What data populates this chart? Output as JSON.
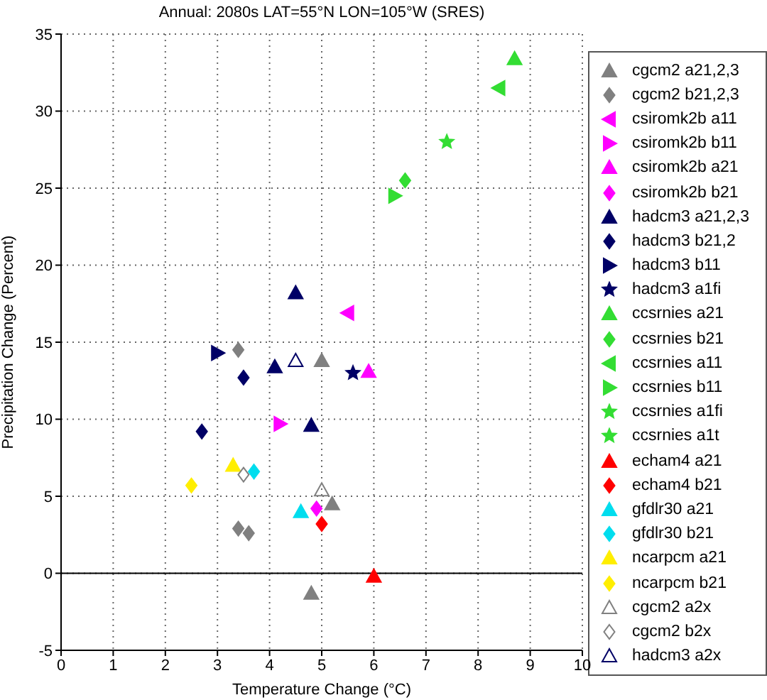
{
  "chart_data": {
    "type": "scatter",
    "title": "Annual: 2080s LAT=55°N LON=105°W (SRES)",
    "xlabel": "Temperature Change (°C)",
    "ylabel": "Precipitation Change (Percent)",
    "xlim": [
      0,
      10
    ],
    "xticks": [
      0,
      1,
      2,
      3,
      4,
      5,
      6,
      7,
      8,
      9,
      10
    ],
    "ylim": [
      -5,
      35
    ],
    "yticks": [
      -5,
      0,
      5,
      10,
      15,
      20,
      25,
      30,
      35
    ],
    "grid": true,
    "legend": "right",
    "ref_lines": [
      {
        "axis": "y",
        "value": 0,
        "color": "#000000",
        "line_style": "solid"
      }
    ],
    "series": [
      {
        "name": "cgcm2 a21,2,3",
        "color": "#808080",
        "marker": "triangle",
        "x": [
          5.0,
          5.2,
          4.8
        ],
        "values": [
          13.8,
          4.5,
          -1.3
        ]
      },
      {
        "name": "cgcm2 b21,2,3",
        "color": "#808080",
        "marker": "diamond",
        "x": [
          3.4,
          3.4,
          3.6
        ],
        "values": [
          14.5,
          2.9,
          2.6
        ]
      },
      {
        "name": "csiromk2b a11",
        "color": "#ff00ff",
        "marker": "triangle-left",
        "x": [
          5.5
        ],
        "values": [
          16.9
        ]
      },
      {
        "name": "csiromk2b b11",
        "color": "#ff00ff",
        "marker": "triangle-right",
        "x": [
          4.2
        ],
        "values": [
          9.7
        ]
      },
      {
        "name": "csiromk2b a21",
        "color": "#ff00ff",
        "marker": "triangle",
        "x": [
          5.9
        ],
        "values": [
          13.1
        ]
      },
      {
        "name": "csiromk2b b21",
        "color": "#ff00ff",
        "marker": "diamond",
        "x": [
          4.9
        ],
        "values": [
          4.2
        ]
      },
      {
        "name": "hadcm3 a21,2,3",
        "color": "#000066",
        "marker": "triangle",
        "x": [
          4.5,
          4.1,
          4.8
        ],
        "values": [
          18.2,
          13.4,
          9.6
        ]
      },
      {
        "name": "hadcm3 b21,2",
        "color": "#000066",
        "marker": "diamond",
        "x": [
          3.5,
          2.7
        ],
        "values": [
          12.7,
          9.2
        ]
      },
      {
        "name": "hadcm3 b11",
        "color": "#000066",
        "marker": "triangle-right",
        "x": [
          3.0
        ],
        "values": [
          14.3
        ]
      },
      {
        "name": "hadcm3 a1fi",
        "color": "#000066",
        "marker": "star",
        "x": [
          5.6
        ],
        "values": [
          13.0
        ]
      },
      {
        "name": "ccsrnies a21",
        "color": "#33dd33",
        "marker": "triangle",
        "x": [
          8.7
        ],
        "values": [
          33.4
        ]
      },
      {
        "name": "ccsrnies b21",
        "color": "#33dd33",
        "marker": "diamond",
        "x": [
          6.6
        ],
        "values": [
          25.5
        ]
      },
      {
        "name": "ccsrnies a11",
        "color": "#33dd33",
        "marker": "triangle-left",
        "x": [
          8.4
        ],
        "values": [
          31.5
        ]
      },
      {
        "name": "ccsrnies b11",
        "color": "#33dd33",
        "marker": "triangle-right",
        "x": [
          6.4
        ],
        "values": [
          24.5
        ]
      },
      {
        "name": "ccsrnies a1fi",
        "color": "#33dd33",
        "marker": "star",
        "x": [
          null
        ],
        "values": [
          null
        ]
      },
      {
        "name": "ccsrnies a1t",
        "color": "#33dd33",
        "marker": "star",
        "x": [
          7.4
        ],
        "values": [
          28.0
        ]
      },
      {
        "name": "echam4 a21",
        "color": "#ff0000",
        "marker": "triangle",
        "x": [
          6.0
        ],
        "values": [
          -0.2
        ]
      },
      {
        "name": "echam4 b21",
        "color": "#ff0000",
        "marker": "diamond",
        "x": [
          5.0
        ],
        "values": [
          3.2
        ]
      },
      {
        "name": "gfdlr30 a21",
        "color": "#00ddee",
        "marker": "triangle",
        "x": [
          4.6
        ],
        "values": [
          4.0
        ]
      },
      {
        "name": "gfdlr30 b21",
        "color": "#00ddee",
        "marker": "diamond",
        "x": [
          3.7
        ],
        "values": [
          6.6
        ]
      },
      {
        "name": "ncarpcm a21",
        "color": "#ffee00",
        "marker": "triangle",
        "x": [
          3.3
        ],
        "values": [
          7.0
        ]
      },
      {
        "name": "ncarpcm b21",
        "color": "#ffee00",
        "marker": "diamond",
        "x": [
          2.5
        ],
        "values": [
          5.7
        ]
      },
      {
        "name": "cgcm2 a2x",
        "color": "#808080",
        "marker": "triangle-open",
        "x": [
          5.0
        ],
        "values": [
          5.4
        ]
      },
      {
        "name": "cgcm2 b2x",
        "color": "#808080",
        "marker": "diamond-open",
        "x": [
          3.5
        ],
        "values": [
          6.4
        ]
      },
      {
        "name": "hadcm3 a2x",
        "color": "#000066",
        "marker": "triangle-open",
        "x": [
          4.5
        ],
        "values": [
          13.8
        ]
      }
    ]
  }
}
